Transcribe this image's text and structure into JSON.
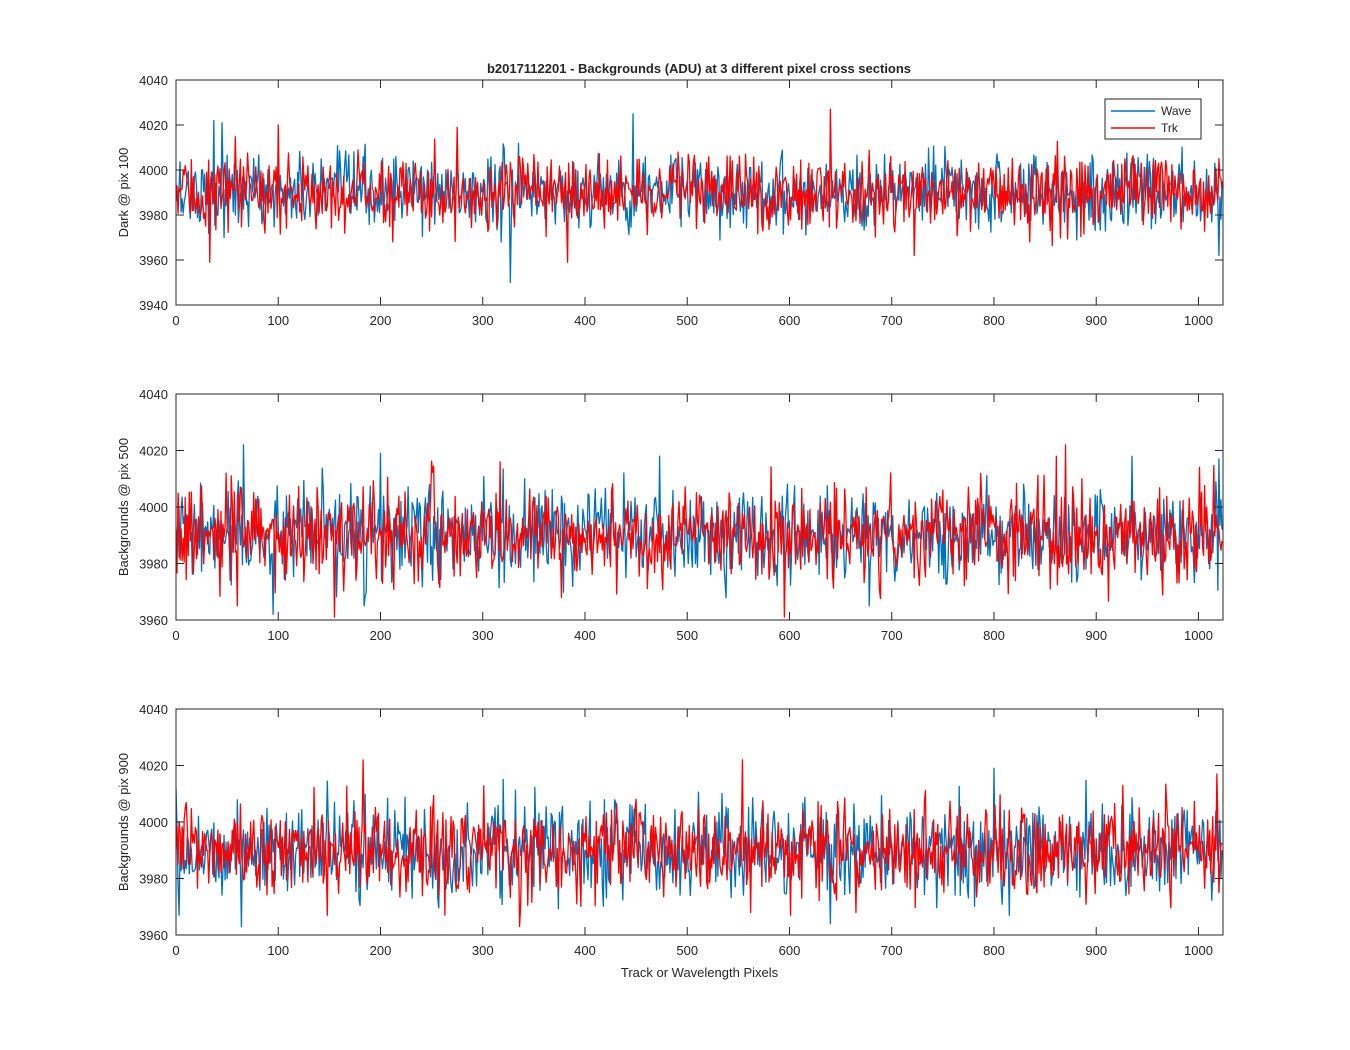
{
  "figure_title": "b2017112201 - Backgrounds (ADU) at 3 different pixel cross sections",
  "colors": {
    "wave": "#0072BD",
    "trk": "#FF0000",
    "axis": "#262626"
  },
  "chart_data": [
    {
      "type": "line",
      "title": "b2017112201 - Backgrounds (ADU) at 3 different pixel cross sections",
      "xlabel": "",
      "ylabel": "Dark @ pix 100",
      "xlim": [
        0,
        1024
      ],
      "ylim": [
        3940,
        4040
      ],
      "xticks": [
        0,
        100,
        200,
        300,
        400,
        500,
        600,
        700,
        800,
        900,
        1000
      ],
      "yticks": [
        3940,
        3960,
        3980,
        4000,
        4020,
        4040
      ],
      "grid": false,
      "legend": {
        "location": "top-right",
        "entries": [
          "Wave",
          "Trk"
        ]
      },
      "noise": {
        "points": 1024,
        "mean": 3990,
        "std": 8,
        "min": 3950,
        "max": 4027
      },
      "series": [
        {
          "name": "Wave",
          "color": "#0072BD",
          "x": [
            0,
            10,
            20,
            30,
            37,
            40,
            45,
            100,
            200,
            300,
            327,
            360,
            400,
            447,
            500,
            600,
            700,
            800,
            900,
            1000,
            1020,
            1024
          ],
          "y": [
            3994,
            3992,
            3993,
            3985,
            4022,
            3980,
            4021,
            3996,
            3990,
            3992,
            3950,
            3993,
            3988,
            4025,
            3995,
            3989,
            3993,
            3987,
            3996,
            3990,
            3962,
            3995
          ]
        },
        {
          "name": "Trk",
          "color": "#FF0000",
          "x": [
            0,
            33,
            100,
            200,
            275,
            300,
            383,
            400,
            500,
            600,
            640,
            700,
            722,
            800,
            900,
            1000,
            1024
          ],
          "y": [
            3991,
            3959,
            4020,
            3990,
            4019,
            3989,
            3959,
            3992,
            3991,
            3988,
            4027,
            3990,
            3962,
            3994,
            3993,
            3989,
            3992
          ]
        }
      ]
    },
    {
      "type": "line",
      "title": "",
      "xlabel": "",
      "ylabel": "Backgrounds @ pix 500",
      "xlim": [
        0,
        1024
      ],
      "ylim": [
        3960,
        4040
      ],
      "xticks": [
        0,
        100,
        200,
        300,
        400,
        500,
        600,
        700,
        800,
        900,
        1000
      ],
      "yticks": [
        3960,
        3980,
        4000,
        4020,
        4040
      ],
      "grid": false,
      "legend": null,
      "noise": {
        "points": 1024,
        "mean": 3990,
        "std": 8,
        "min": 3961,
        "max": 4022
      },
      "series": [
        {
          "name": "Wave",
          "color": "#0072BD",
          "x": [
            0,
            66,
            95,
            100,
            200,
            300,
            400,
            500,
            600,
            700,
            800,
            900,
            1000,
            1020,
            1024
          ],
          "y": [
            3990,
            4022,
            3962,
            3993,
            4019,
            3988,
            3992,
            3989,
            3995,
            3990,
            3988,
            3993,
            3990,
            4017,
            3992
          ]
        },
        {
          "name": "Trk",
          "color": "#FF0000",
          "x": [
            0,
            60,
            100,
            155,
            200,
            300,
            400,
            500,
            595,
            600,
            700,
            800,
            870,
            900,
            1000,
            1024
          ],
          "y": [
            3992,
            3965,
            3991,
            3961,
            3990,
            3993,
            3989,
            3991,
            3961,
            3992,
            3990,
            3994,
            4022,
            3990,
            3992,
            3988
          ]
        }
      ]
    },
    {
      "type": "line",
      "title": "",
      "xlabel": "Track or Wavelength Pixels",
      "ylabel": "Backgrounds @ pix 900",
      "xlim": [
        0,
        1024
      ],
      "ylim": [
        3960,
        4040
      ],
      "xticks": [
        0,
        100,
        200,
        300,
        400,
        500,
        600,
        700,
        800,
        900,
        1000
      ],
      "yticks": [
        3960,
        3980,
        4000,
        4020,
        4040
      ],
      "grid": false,
      "legend": null,
      "noise": {
        "points": 1024,
        "mean": 3990,
        "std": 8,
        "min": 3963,
        "max": 4022
      },
      "series": [
        {
          "name": "Wave",
          "color": "#0072BD",
          "x": [
            0,
            64,
            100,
            200,
            300,
            400,
            500,
            600,
            640,
            700,
            800,
            900,
            1000,
            1024
          ],
          "y": [
            4012,
            3963,
            3992,
            3989,
            3993,
            3990,
            3992,
            3988,
            3964,
            3991,
            4019,
            3990,
            3992,
            3990
          ]
        },
        {
          "name": "Trk",
          "color": "#FF0000",
          "x": [
            0,
            100,
            183,
            200,
            300,
            336,
            400,
            500,
            554,
            600,
            700,
            800,
            900,
            1000,
            1018,
            1024
          ],
          "y": [
            3990,
            3991,
            4022,
            3992,
            3990,
            3963,
            3993,
            3991,
            4022,
            3989,
            3992,
            3990,
            3994,
            3991,
            4017,
            3992
          ]
        }
      ]
    }
  ]
}
